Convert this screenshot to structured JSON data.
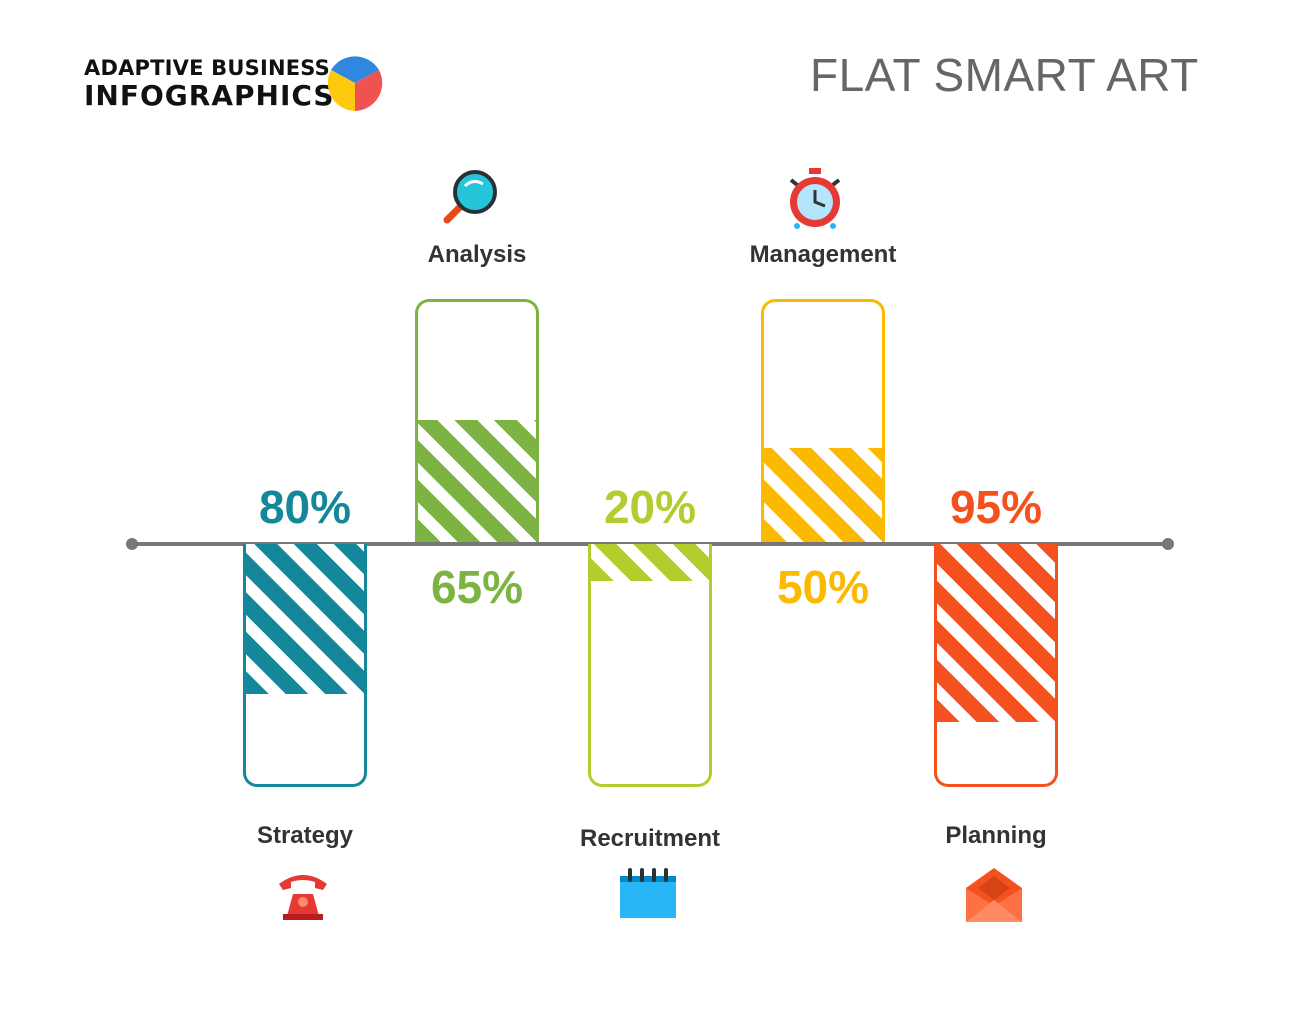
{
  "header": {
    "brand_line1": "ADAPTIVE BUSINESS",
    "brand_line2": "INFOGRAPHICS",
    "title": "FLAT SMART ART"
  },
  "chart_data": {
    "type": "bar",
    "categories": [
      "Strategy",
      "Analysis",
      "Recruitment",
      "Management",
      "Planning"
    ],
    "values": [
      80,
      65,
      20,
      50,
      95
    ],
    "labels": [
      "80%",
      "65%",
      "20%",
      "50%",
      "95%"
    ],
    "directions": [
      "down",
      "up",
      "down",
      "up",
      "down"
    ],
    "colors": [
      "#14879a",
      "#7cb342",
      "#b5cc2e",
      "#fbb900",
      "#f4511e"
    ],
    "icons": [
      "telephone-icon",
      "magnifier-icon",
      "notepad-icon",
      "alarm-clock-icon",
      "envelope-icon"
    ],
    "ylim": [
      0,
      100
    ]
  }
}
